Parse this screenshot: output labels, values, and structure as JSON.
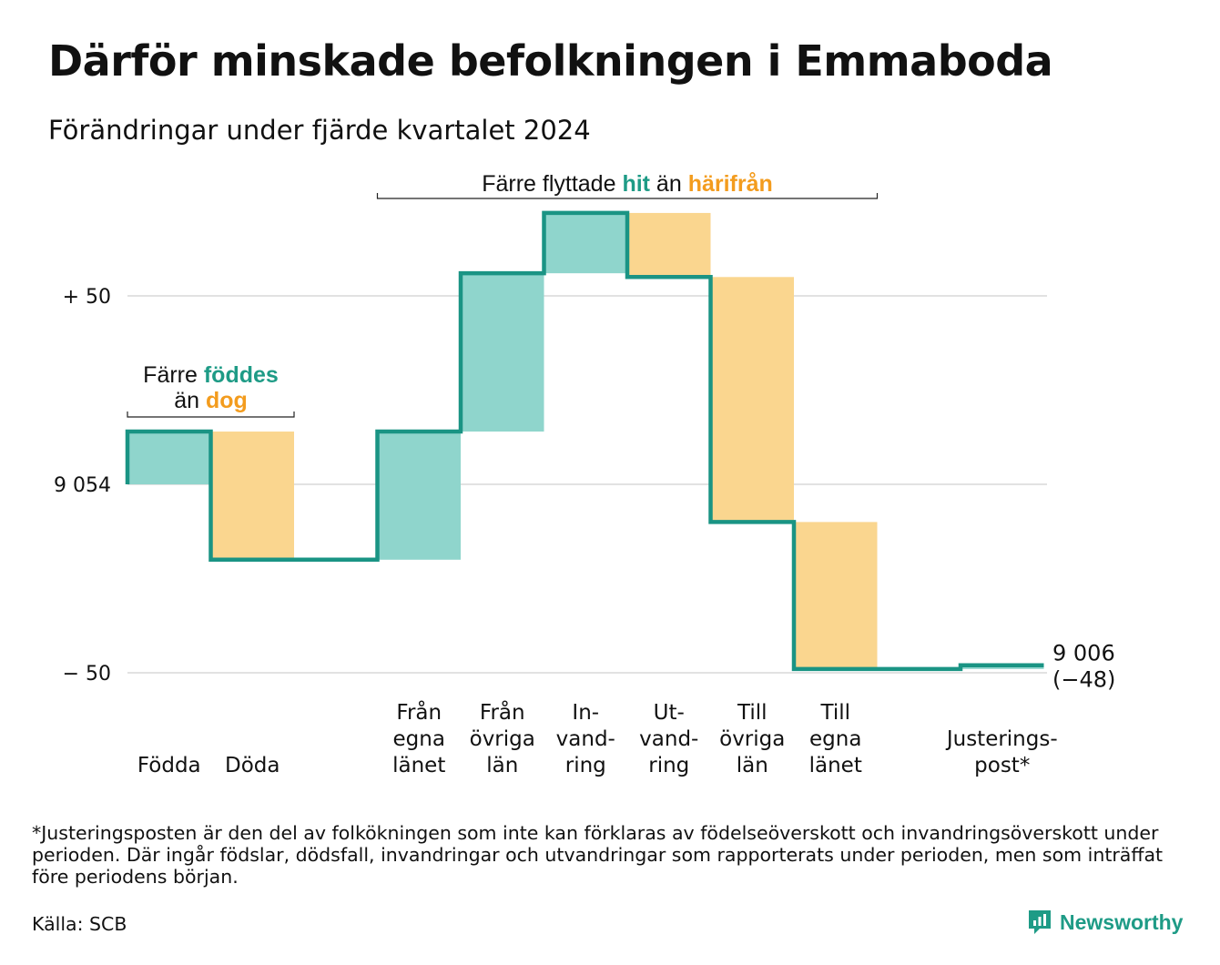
{
  "title": "Därför minskade befolkningen i Emmaboda",
  "subtitle": "Förändringar under fjärde kvartalet 2024",
  "footnote": "*Justeringsposten är den del av folkökningen som inte kan förklaras av födelseöverskott och invandringsöverskott under perioden. Där ingår födslar, dödsfall, invandringar och utvandringar som rapporterats under perioden, men som inträffat före periodens början.",
  "source": "Källa: SCB",
  "brand": "Newsworthy",
  "colors": {
    "increase": "#8fd5cc",
    "decrease": "#fad68f",
    "line": "#1a9484",
    "teal_text": "#1e9b86",
    "orange_text": "#f39c1e",
    "grid": "#e2e2e2"
  },
  "annotations": {
    "births_deaths": {
      "line1_prefix": "Färre ",
      "line1_highlight": "föddes",
      "line2_prefix": "än ",
      "line2_highlight": "dog"
    },
    "migration": {
      "prefix": "Färre flyttade ",
      "highlight1": "hit",
      "middle": " än ",
      "highlight2": "härifrån"
    }
  },
  "chart_data": {
    "type": "waterfall",
    "start_value": 9054,
    "end_label": [
      "9 006",
      "(−48)"
    ],
    "y_ticks": [
      {
        "value": 50,
        "label": "+ 50"
      },
      {
        "value": 0,
        "label": "9 054"
      },
      {
        "value": -50,
        "label": "− 50"
      }
    ],
    "ylim": [
      -52,
      75
    ],
    "grid": true,
    "steps": [
      {
        "label": [
          "Födda"
        ],
        "change": 14,
        "kind": "increase"
      },
      {
        "label": [
          "Döda"
        ],
        "change": -34,
        "kind": "decrease"
      },
      {
        "label": [
          ""
        ],
        "change": 0,
        "kind": "none"
      },
      {
        "label": [
          "Från",
          "egna",
          "länet"
        ],
        "change": 34,
        "kind": "increase"
      },
      {
        "label": [
          "Från",
          "övriga",
          "län"
        ],
        "change": 42,
        "kind": "increase"
      },
      {
        "label": [
          "In-",
          "vand-",
          "ring"
        ],
        "change": 16,
        "kind": "increase"
      },
      {
        "label": [
          "Ut-",
          "vand-",
          "ring"
        ],
        "change": -17,
        "kind": "decrease"
      },
      {
        "label": [
          "Till",
          "övriga",
          "län"
        ],
        "change": -65,
        "kind": "decrease"
      },
      {
        "label": [
          "Till",
          "egna",
          "länet"
        ],
        "change": -39,
        "kind": "decrease"
      },
      {
        "label": [
          ""
        ],
        "change": 0,
        "kind": "none"
      },
      {
        "label": [
          "Justerings-",
          "post*"
        ],
        "change": 1,
        "kind": "increase"
      }
    ]
  }
}
